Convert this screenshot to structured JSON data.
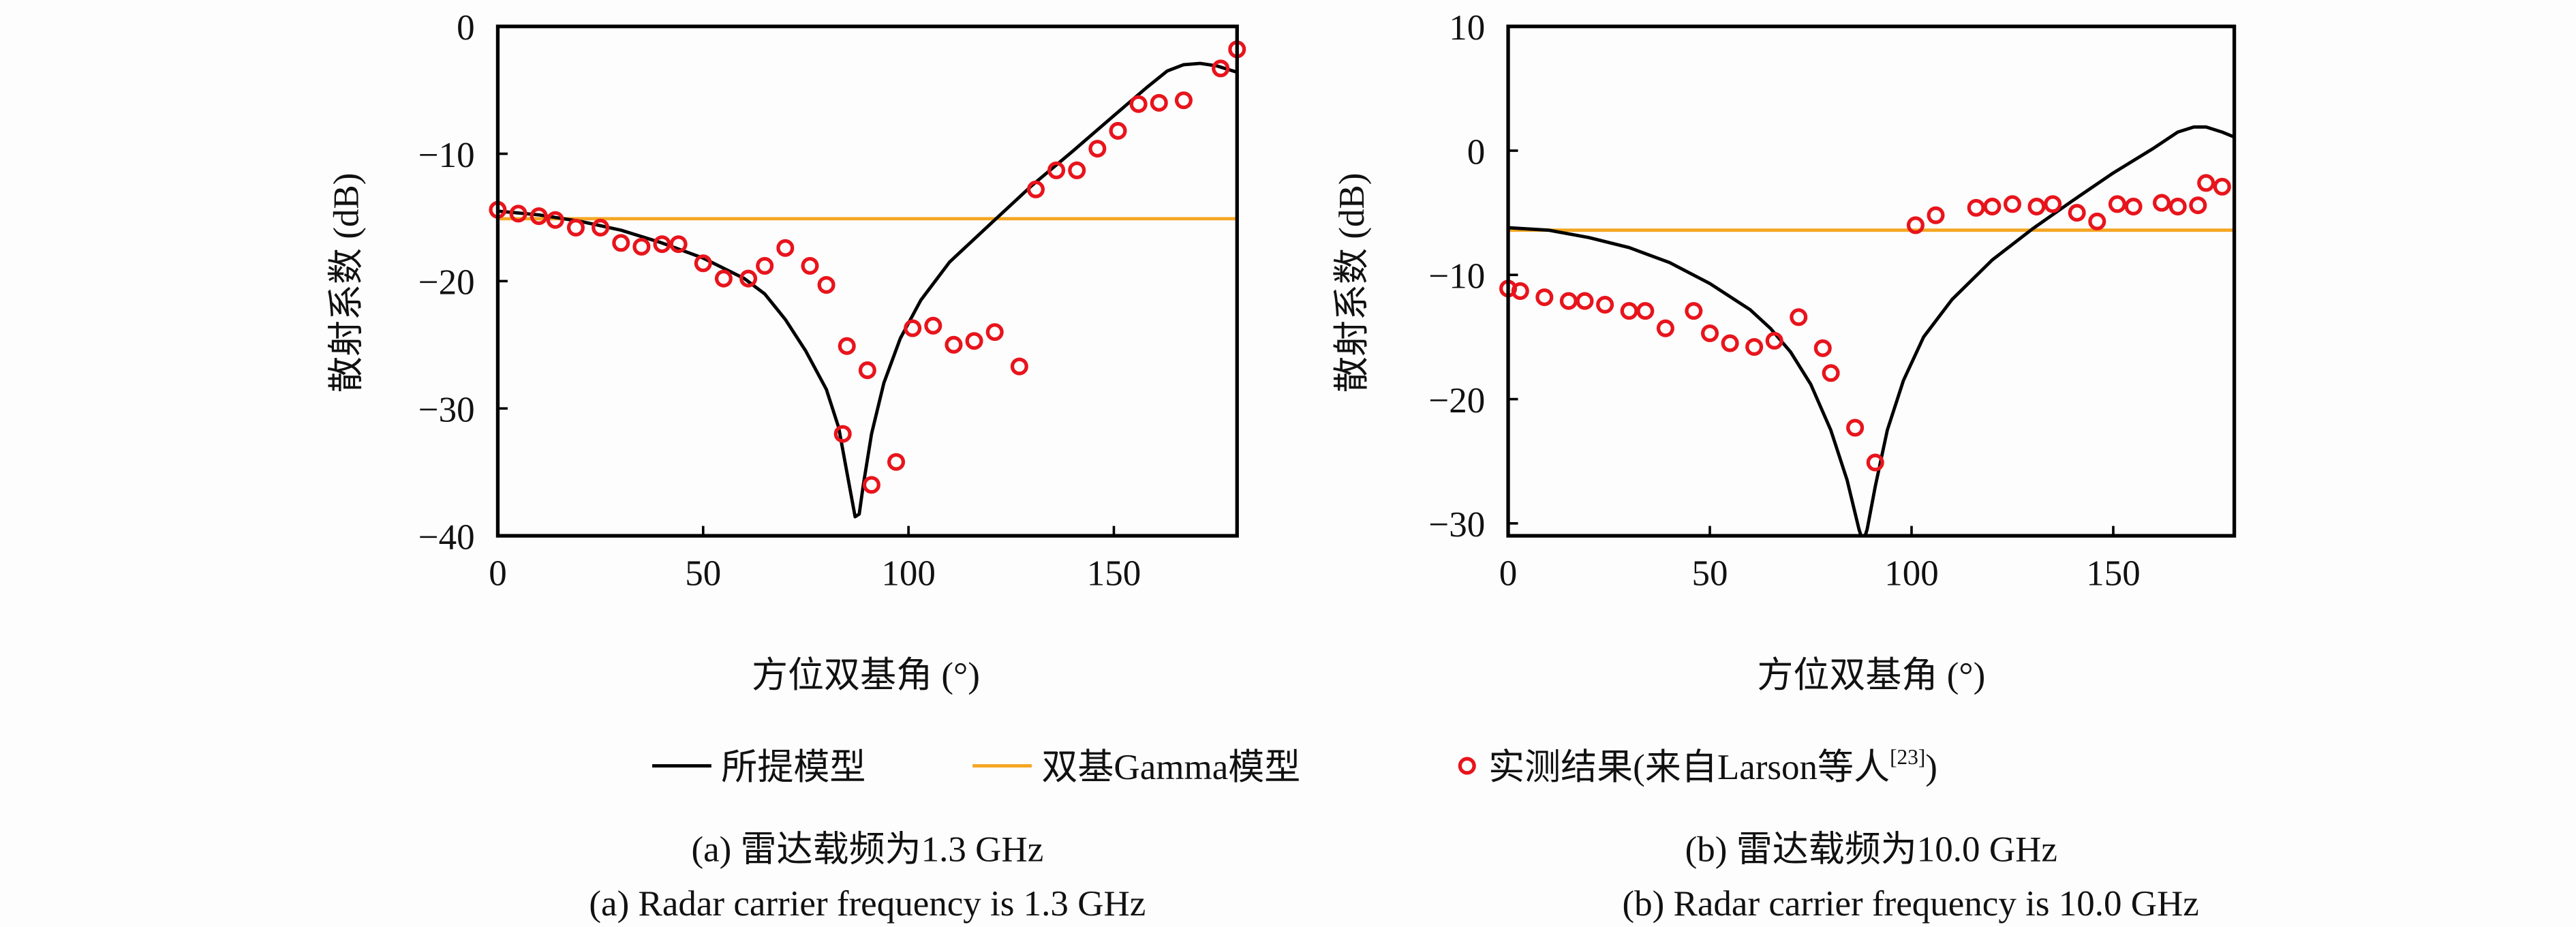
{
  "colors": {
    "model": "#000000",
    "gamma": "#f5a623",
    "measured": "#e8141c"
  },
  "legend": {
    "model": "所提模型",
    "gamma": "双基Gamma模型",
    "measured": "实测结果(来自Larson等人",
    "measured_ref": "[23]",
    "measured_close": ")"
  },
  "chart_data": [
    {
      "type": "line",
      "caption_zh": "(a) 雷达载频为1.3 GHz",
      "caption_en": "(a) Radar carrier frequency is 1.3 GHz",
      "xlabel": "方位双基角 (°)",
      "ylabel": "散射系数 (dB)",
      "xlim": [
        0,
        180
      ],
      "ylim": [
        -40,
        0
      ],
      "xticks": [
        "0",
        "50",
        "100",
        "150"
      ],
      "yticks": [
        "0",
        "−10",
        "−20",
        "−30",
        "−40"
      ],
      "xtick_values": [
        0,
        50,
        100,
        150
      ],
      "ytick_values": [
        0,
        -10,
        -20,
        -30,
        -40
      ],
      "gamma_level": -15.1,
      "model": [
        [
          0,
          -14.5
        ],
        [
          10,
          -14.8
        ],
        [
          20,
          -15.3
        ],
        [
          30,
          -16
        ],
        [
          40,
          -17
        ],
        [
          50,
          -18.2
        ],
        [
          60,
          -19.8
        ],
        [
          65,
          -21
        ],
        [
          70,
          -23
        ],
        [
          75,
          -25.5
        ],
        [
          80,
          -28.5
        ],
        [
          83,
          -31.5
        ],
        [
          85,
          -35
        ],
        [
          87,
          -38.5
        ],
        [
          88,
          -38.3
        ],
        [
          89,
          -36
        ],
        [
          91,
          -32
        ],
        [
          94,
          -28
        ],
        [
          98,
          -24.5
        ],
        [
          103,
          -21.5
        ],
        [
          110,
          -18.5
        ],
        [
          120,
          -15.5
        ],
        [
          130,
          -12.5
        ],
        [
          140,
          -9.8
        ],
        [
          150,
          -7
        ],
        [
          158,
          -4.8
        ],
        [
          163,
          -3.5
        ],
        [
          167,
          -3
        ],
        [
          171,
          -2.9
        ],
        [
          175,
          -3.1
        ],
        [
          180,
          -3.6
        ]
      ],
      "measured": [
        [
          0,
          -14.4
        ],
        [
          5,
          -14.7
        ],
        [
          10,
          -14.9
        ],
        [
          14,
          -15.2
        ],
        [
          19,
          -15.8
        ],
        [
          25,
          -15.8
        ],
        [
          30,
          -17
        ],
        [
          35,
          -17.3
        ],
        [
          40,
          -17.1
        ],
        [
          44,
          -17.1
        ],
        [
          50,
          -18.6
        ],
        [
          55,
          -19.8
        ],
        [
          61,
          -19.8
        ],
        [
          65,
          -18.8
        ],
        [
          70,
          -17.4
        ],
        [
          76,
          -18.8
        ],
        [
          80,
          -20.3
        ],
        [
          84,
          -32
        ],
        [
          85,
          -25.1
        ],
        [
          90,
          -27
        ],
        [
          91,
          -36
        ],
        [
          97,
          -34.2
        ],
        [
          101,
          -23.7
        ],
        [
          106,
          -23.5
        ],
        [
          111,
          -25
        ],
        [
          116,
          -24.7
        ],
        [
          121,
          -24
        ],
        [
          127,
          -26.7
        ],
        [
          131,
          -12.8
        ],
        [
          136,
          -11.3
        ],
        [
          141,
          -11.3
        ],
        [
          146,
          -9.6
        ],
        [
          151,
          -8.2
        ],
        [
          156,
          -6.1
        ],
        [
          161,
          -6
        ],
        [
          167,
          -5.8
        ],
        [
          176,
          -3.3
        ],
        [
          180,
          -1.8
        ]
      ]
    },
    {
      "type": "line",
      "caption_zh": "(b) 雷达载频为10.0 GHz",
      "caption_en": "(b) Radar carrier frequency is 10.0 GHz",
      "xlabel": "方位双基角 (°)",
      "ylabel": "散射系数 (dB)",
      "xlim": [
        0,
        180
      ],
      "ylim": [
        -31,
        10
      ],
      "xticks": [
        "0",
        "50",
        "100",
        "150"
      ],
      "yticks": [
        "10",
        "0",
        "−10",
        "−20",
        "−30"
      ],
      "xtick_values": [
        0,
        50,
        100,
        150
      ],
      "ytick_values": [
        10,
        0,
        -10,
        -20,
        -30
      ],
      "gamma_level": -6.4,
      "model": [
        [
          0,
          -6.2
        ],
        [
          10,
          -6.4
        ],
        [
          20,
          -7
        ],
        [
          30,
          -7.8
        ],
        [
          40,
          -9
        ],
        [
          50,
          -10.7
        ],
        [
          60,
          -12.8
        ],
        [
          65,
          -14.3
        ],
        [
          70,
          -16.2
        ],
        [
          75,
          -18.8
        ],
        [
          80,
          -22.5
        ],
        [
          84,
          -26.5
        ],
        [
          87,
          -30.5
        ],
        [
          88,
          -31.5
        ],
        [
          89,
          -30.5
        ],
        [
          91,
          -27
        ],
        [
          94,
          -22.5
        ],
        [
          98,
          -18.5
        ],
        [
          103,
          -15
        ],
        [
          110,
          -12
        ],
        [
          120,
          -8.8
        ],
        [
          130,
          -6.3
        ],
        [
          140,
          -4
        ],
        [
          150,
          -1.8
        ],
        [
          160,
          0.2
        ],
        [
          166,
          1.5
        ],
        [
          170,
          1.9
        ],
        [
          173,
          1.9
        ],
        [
          177,
          1.5
        ],
        [
          180,
          1.1
        ]
      ],
      "measured": [
        [
          0,
          -11.1
        ],
        [
          3,
          -11.3
        ],
        [
          9,
          -11.8
        ],
        [
          15,
          -12.1
        ],
        [
          19,
          -12.1
        ],
        [
          24,
          -12.4
        ],
        [
          30,
          -12.9
        ],
        [
          34,
          -12.9
        ],
        [
          39,
          -14.3
        ],
        [
          46,
          -12.9
        ],
        [
          50,
          -14.7
        ],
        [
          55,
          -15.5
        ],
        [
          61,
          -15.8
        ],
        [
          66,
          -15.3
        ],
        [
          72,
          -13.4
        ],
        [
          78,
          -15.9
        ],
        [
          80,
          -17.9
        ],
        [
          86,
          -22.3
        ],
        [
          91,
          -25.1
        ],
        [
          101,
          -6
        ],
        [
          106,
          -5.2
        ],
        [
          116,
          -4.6
        ],
        [
          120,
          -4.5
        ],
        [
          125,
          -4.3
        ],
        [
          131,
          -4.5
        ],
        [
          135,
          -4.3
        ],
        [
          141,
          -5
        ],
        [
          146,
          -5.7
        ],
        [
          151,
          -4.3
        ],
        [
          155,
          -4.5
        ],
        [
          162,
          -4.2
        ],
        [
          166,
          -4.5
        ],
        [
          171,
          -4.4
        ],
        [
          173,
          -2.6
        ],
        [
          177,
          -2.9
        ]
      ]
    }
  ]
}
